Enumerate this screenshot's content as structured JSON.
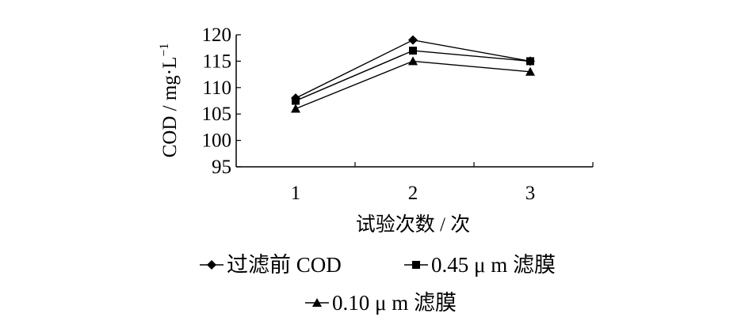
{
  "chart_data": {
    "type": "line",
    "xlabel": "试验次数 / 次",
    "ylabel": "COD / mg·L",
    "ylabel_sup": "−1",
    "x": [
      1,
      2,
      3
    ],
    "xticks": [
      "1",
      "2",
      "3"
    ],
    "ylim": [
      95,
      120
    ],
    "yticks": [
      "95",
      "100",
      "105",
      "110",
      "115",
      "120"
    ],
    "grid": false,
    "legend_position": "bottom",
    "series": [
      {
        "name": "过滤前 COD",
        "marker": "diamond",
        "values": [
          108,
          119,
          115
        ]
      },
      {
        "name": "0.45 μ m 滤膜",
        "marker": "square",
        "values": [
          107.5,
          117,
          115
        ]
      },
      {
        "name": "0.10 μ m 滤膜",
        "marker": "triangle",
        "values": [
          106,
          115,
          113
        ]
      }
    ]
  }
}
